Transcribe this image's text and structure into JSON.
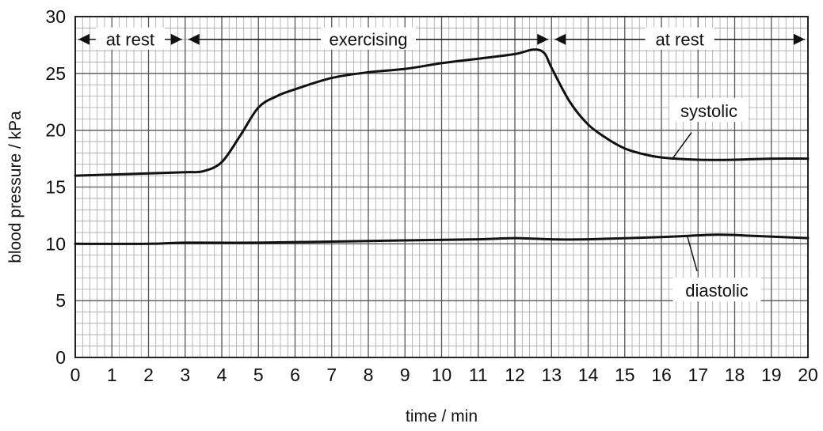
{
  "chart_data": {
    "type": "line",
    "title": "",
    "xlabel": "time / min",
    "ylabel": "blood pressure / kPa",
    "xlim": [
      0,
      20
    ],
    "ylim": [
      0,
      30
    ],
    "x_ticks": [
      "0",
      "1",
      "2",
      "3",
      "4",
      "5",
      "6",
      "7",
      "8",
      "9",
      "10",
      "11",
      "12",
      "13",
      "14",
      "15",
      "16",
      "17",
      "18",
      "19",
      "20"
    ],
    "y_ticks": [
      "0",
      "5",
      "10",
      "15",
      "20",
      "25",
      "30"
    ],
    "grid": true,
    "series": [
      {
        "name": "systolic",
        "points": [
          [
            0,
            16.0
          ],
          [
            1,
            16.1
          ],
          [
            2,
            16.2
          ],
          [
            3,
            16.3
          ],
          [
            3.5,
            16.4
          ],
          [
            4,
            17.2
          ],
          [
            4.5,
            19.5
          ],
          [
            5,
            22.0
          ],
          [
            5.5,
            23.0
          ],
          [
            6,
            23.6
          ],
          [
            7,
            24.6
          ],
          [
            8,
            25.1
          ],
          [
            9,
            25.4
          ],
          [
            10,
            25.9
          ],
          [
            11,
            26.3
          ],
          [
            12,
            26.7
          ],
          [
            12.5,
            27.1
          ],
          [
            12.8,
            26.8
          ],
          [
            13,
            25.5
          ],
          [
            13.5,
            22.5
          ],
          [
            14,
            20.5
          ],
          [
            14.5,
            19.3
          ],
          [
            15,
            18.4
          ],
          [
            15.5,
            17.9
          ],
          [
            16,
            17.6
          ],
          [
            17,
            17.4
          ],
          [
            18,
            17.4
          ],
          [
            19,
            17.5
          ],
          [
            20,
            17.5
          ]
        ]
      },
      {
        "name": "diastolic",
        "points": [
          [
            0,
            10.0
          ],
          [
            2,
            10.0
          ],
          [
            3,
            10.1
          ],
          [
            5,
            10.1
          ],
          [
            7,
            10.2
          ],
          [
            9,
            10.3
          ],
          [
            11,
            10.4
          ],
          [
            12,
            10.5
          ],
          [
            13,
            10.4
          ],
          [
            14,
            10.4
          ],
          [
            16,
            10.6
          ],
          [
            17.5,
            10.8
          ],
          [
            18.5,
            10.7
          ],
          [
            20,
            10.5
          ]
        ]
      }
    ],
    "phases": [
      {
        "label": "at rest",
        "start": 0,
        "end": 3
      },
      {
        "label": "exercising",
        "start": 3,
        "end": 13
      },
      {
        "label": "at rest",
        "start": 13,
        "end": 20
      }
    ],
    "curve_labels": [
      {
        "text": "systolic",
        "series": "systolic"
      },
      {
        "text": "diastolic",
        "series": "diastolic"
      }
    ]
  }
}
